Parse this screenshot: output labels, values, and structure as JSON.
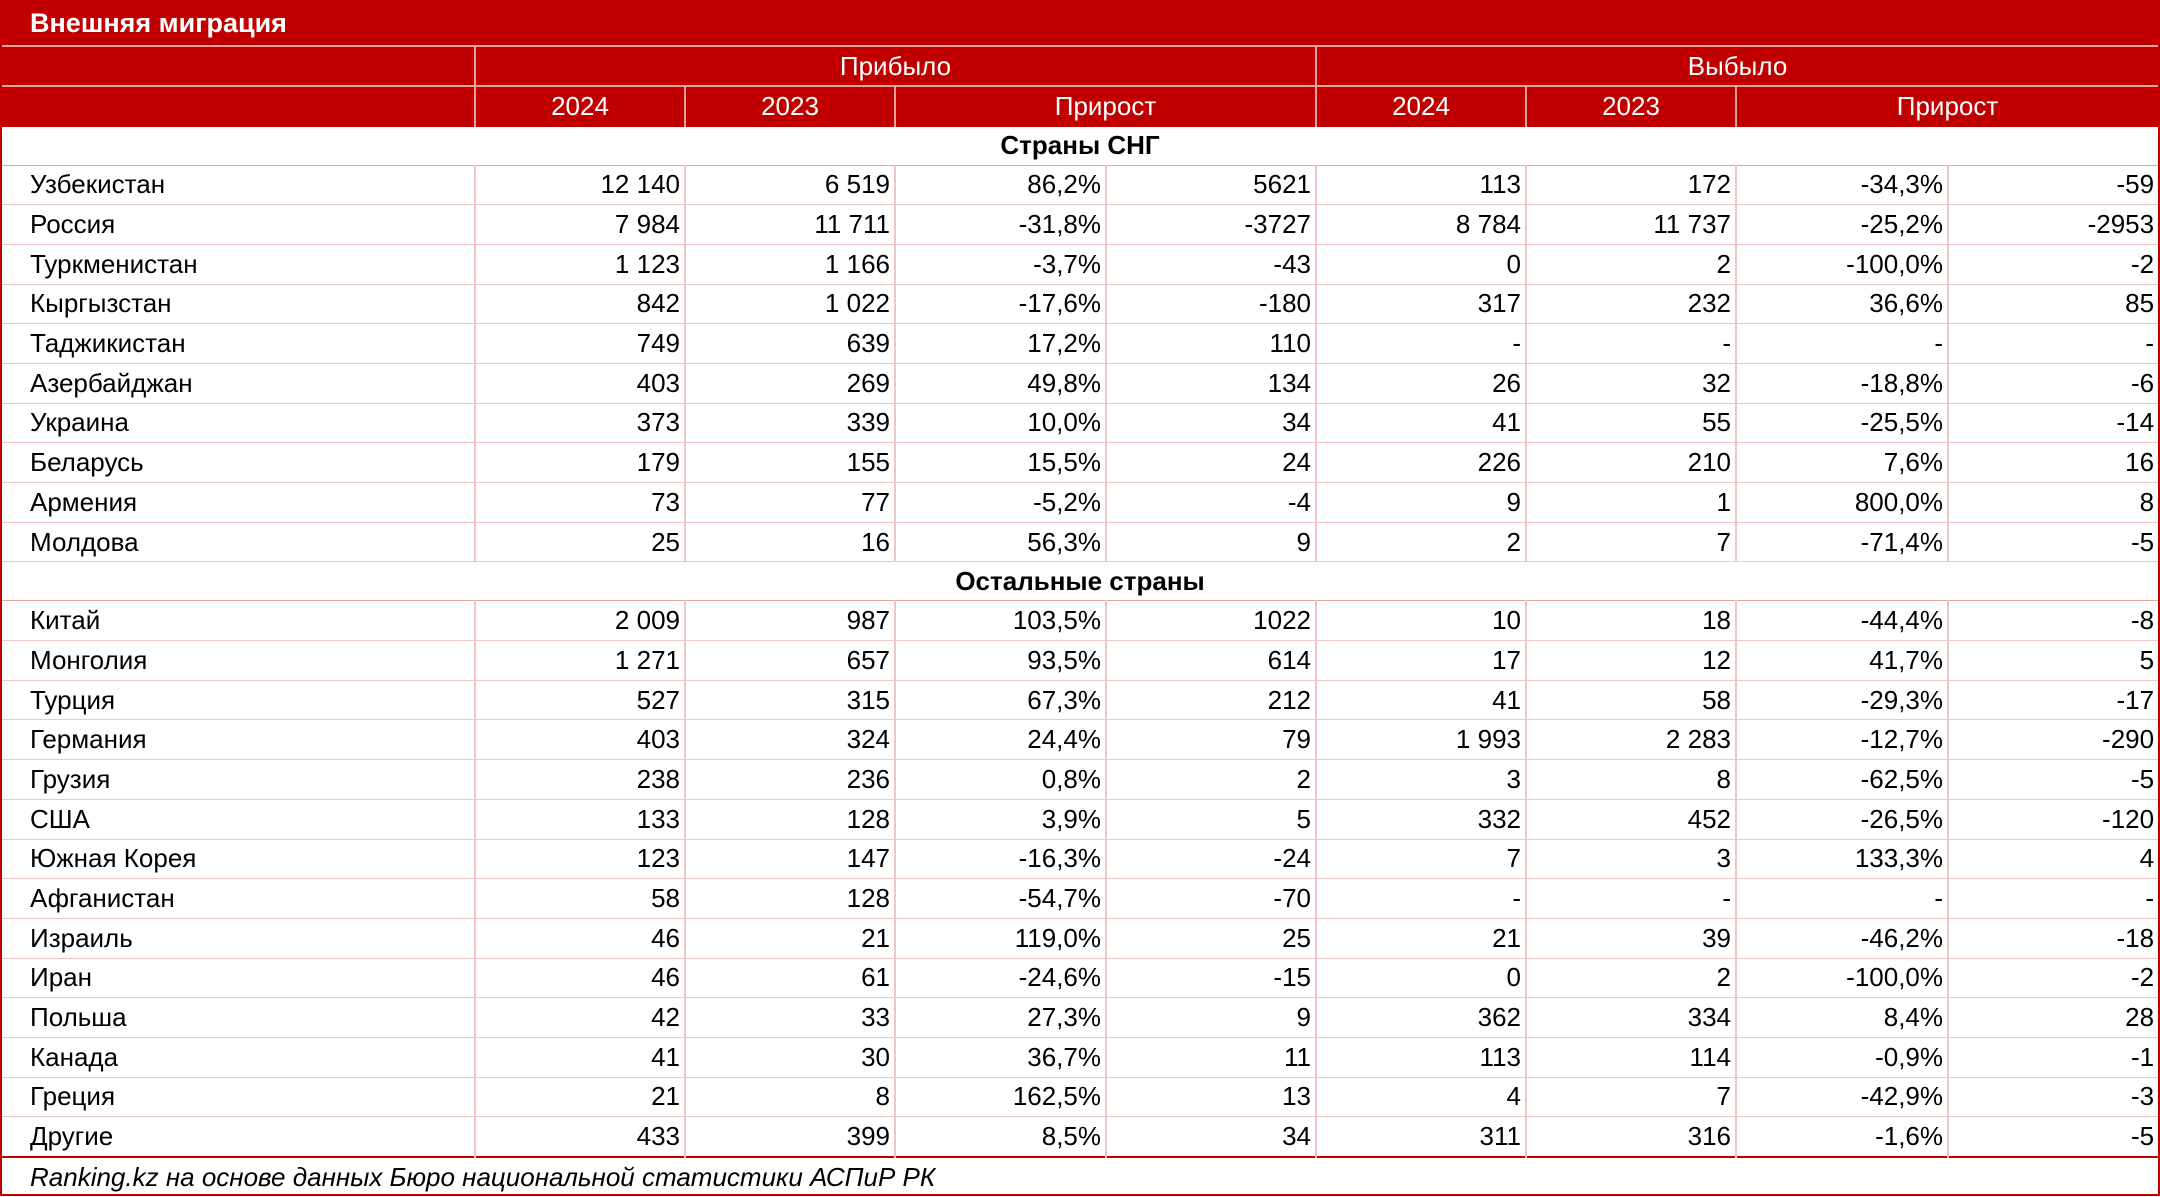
{
  "title": "Внешняя миграция",
  "groups": {
    "arrived": "Прибыло",
    "departed": "Выбыло"
  },
  "subheaders": [
    "2024",
    "2023",
    "Прирост",
    "2024",
    "2023",
    "Прирост"
  ],
  "sections": [
    {
      "title": "Страны СНГ",
      "rows": [
        [
          "Узбекистан",
          "12 140",
          "6 519",
          "86,2%",
          "5621",
          "113",
          "172",
          "-34,3%",
          "-59"
        ],
        [
          "Россия",
          "7 984",
          "11 711",
          "-31,8%",
          "-3727",
          "8 784",
          "11 737",
          "-25,2%",
          "-2953"
        ],
        [
          "Туркменистан",
          "1 123",
          "1 166",
          "-3,7%",
          "-43",
          "0",
          "2",
          "-100,0%",
          "-2"
        ],
        [
          "Кыргызстан",
          "842",
          "1 022",
          "-17,6%",
          "-180",
          "317",
          "232",
          "36,6%",
          "85"
        ],
        [
          "Таджикистан",
          "749",
          "639",
          "17,2%",
          "110",
          "-",
          "-",
          "-",
          "-"
        ],
        [
          "Азербайджан",
          "403",
          "269",
          "49,8%",
          "134",
          "26",
          "32",
          "-18,8%",
          "-6"
        ],
        [
          "Украина",
          "373",
          "339",
          "10,0%",
          "34",
          "41",
          "55",
          "-25,5%",
          "-14"
        ],
        [
          "Беларусь",
          "179",
          "155",
          "15,5%",
          "24",
          "226",
          "210",
          "7,6%",
          "16"
        ],
        [
          "Армения",
          "73",
          "77",
          "-5,2%",
          "-4",
          "9",
          "1",
          "800,0%",
          "8"
        ],
        [
          "Молдова",
          "25",
          "16",
          "56,3%",
          "9",
          "2",
          "7",
          "-71,4%",
          "-5"
        ]
      ]
    },
    {
      "title": "Остальные страны",
      "rows": [
        [
          "Китай",
          "2 009",
          "987",
          "103,5%",
          "1022",
          "10",
          "18",
          "-44,4%",
          "-8"
        ],
        [
          "Монголия",
          "1 271",
          "657",
          "93,5%",
          "614",
          "17",
          "12",
          "41,7%",
          "5"
        ],
        [
          "Турция",
          "527",
          "315",
          "67,3%",
          "212",
          "41",
          "58",
          "-29,3%",
          "-17"
        ],
        [
          "Германия",
          "403",
          "324",
          "24,4%",
          "79",
          "1 993",
          "2 283",
          "-12,7%",
          "-290"
        ],
        [
          "Грузия",
          "238",
          "236",
          "0,8%",
          "2",
          "3",
          "8",
          "-62,5%",
          "-5"
        ],
        [
          "США",
          "133",
          "128",
          "3,9%",
          "5",
          "332",
          "452",
          "-26,5%",
          "-120"
        ],
        [
          "Южная Корея",
          "123",
          "147",
          "-16,3%",
          "-24",
          "7",
          "3",
          "133,3%",
          "4"
        ],
        [
          "Афганистан",
          "58",
          "128",
          "-54,7%",
          "-70",
          "-",
          "-",
          "-",
          "-"
        ],
        [
          "Израиль",
          "46",
          "21",
          "119,0%",
          "25",
          "21",
          "39",
          "-46,2%",
          "-18"
        ],
        [
          "Иран",
          "46",
          "61",
          "-24,6%",
          "-15",
          "0",
          "2",
          "-100,0%",
          "-2"
        ],
        [
          "Польша",
          "42",
          "33",
          "27,3%",
          "9",
          "362",
          "334",
          "8,4%",
          "28"
        ],
        [
          "Канада",
          "41",
          "30",
          "36,7%",
          "11",
          "113",
          "114",
          "-0,9%",
          "-1"
        ],
        [
          "Греция",
          "21",
          "8",
          "162,5%",
          "13",
          "4",
          "7",
          "-42,9%",
          "-3"
        ],
        [
          "Другие",
          "433",
          "399",
          "8,5%",
          "34",
          "311",
          "316",
          "-1,6%",
          "-5"
        ]
      ]
    }
  ],
  "source": "Ranking.kz на основе данных Бюро национальной статистики АСПиР РК",
  "colors": {
    "header_bg": "#c00000",
    "header_text": "#ffffff",
    "grid": "#f2c5c5"
  }
}
